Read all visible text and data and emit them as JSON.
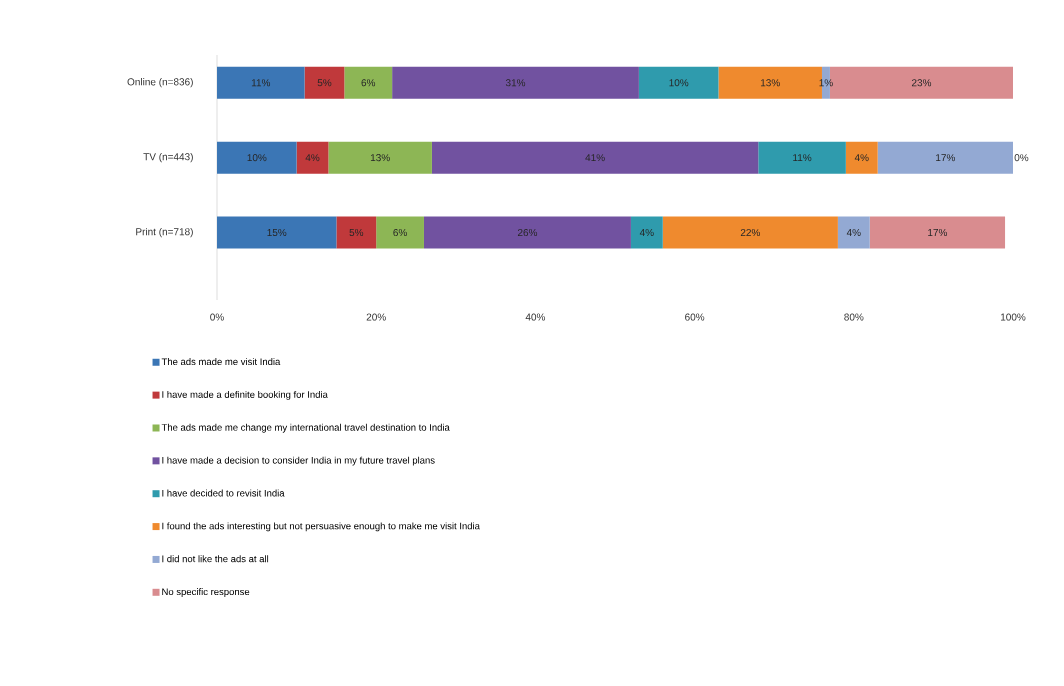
{
  "chart_data": {
    "type": "bar",
    "orientation": "horizontal",
    "stacked": true,
    "categories": [
      "Online (n=836)",
      "TV (n=443)",
      "Print (n=718)"
    ],
    "series": [
      {
        "name": "The ads made me visit India",
        "color": "#3b76b5",
        "values": [
          11,
          10,
          15
        ],
        "value_labels": [
          "11%",
          "10%",
          "15%"
        ]
      },
      {
        "name": "I have made a definite booking for India",
        "color": "#c0393b",
        "values": [
          5,
          4,
          5
        ],
        "value_labels": [
          "5%",
          "4%",
          "5%"
        ]
      },
      {
        "name": "The ads made me change my international travel destination to India",
        "color": "#8db655",
        "values": [
          6,
          13,
          6
        ],
        "value_labels": [
          "6%",
          "13%",
          "6%"
        ]
      },
      {
        "name": "I have made a decision to consider India in my future travel plans",
        "color": "#7152a0",
        "values": [
          31,
          41,
          26
        ],
        "value_labels": [
          "31%",
          "41%",
          "26%"
        ]
      },
      {
        "name": "I have decided to revisit India",
        "color": "#2f9bad",
        "values": [
          10,
          11,
          4
        ],
        "value_labels": [
          "10%",
          "11%",
          "4%"
        ]
      },
      {
        "name": "I found the ads interesting but not persuasive enough to make me visit India",
        "color": "#ef8a2e",
        "values": [
          13,
          4,
          22
        ],
        "value_labels": [
          "13%",
          "4%",
          "22%"
        ]
      },
      {
        "name": "I did not like the ads at all",
        "color": "#93a9d3",
        "values": [
          1,
          17,
          4
        ],
        "value_labels": [
          "1%",
          "17%",
          "4%"
        ]
      },
      {
        "name": "No specific response",
        "color": "#d98c8f",
        "values": [
          23,
          0,
          17
        ],
        "value_labels": [
          "23%",
          "0%",
          "17%"
        ]
      }
    ],
    "xlim": [
      0,
      100
    ],
    "xticks": [
      {
        "value": 0,
        "label": "0%"
      },
      {
        "value": 20,
        "label": "20%"
      },
      {
        "value": 40,
        "label": "40%"
      },
      {
        "value": 60,
        "label": "60%"
      },
      {
        "value": 80,
        "label": "80%"
      },
      {
        "value": 100,
        "label": "100%"
      }
    ],
    "grid": false,
    "legend": "bottom"
  }
}
